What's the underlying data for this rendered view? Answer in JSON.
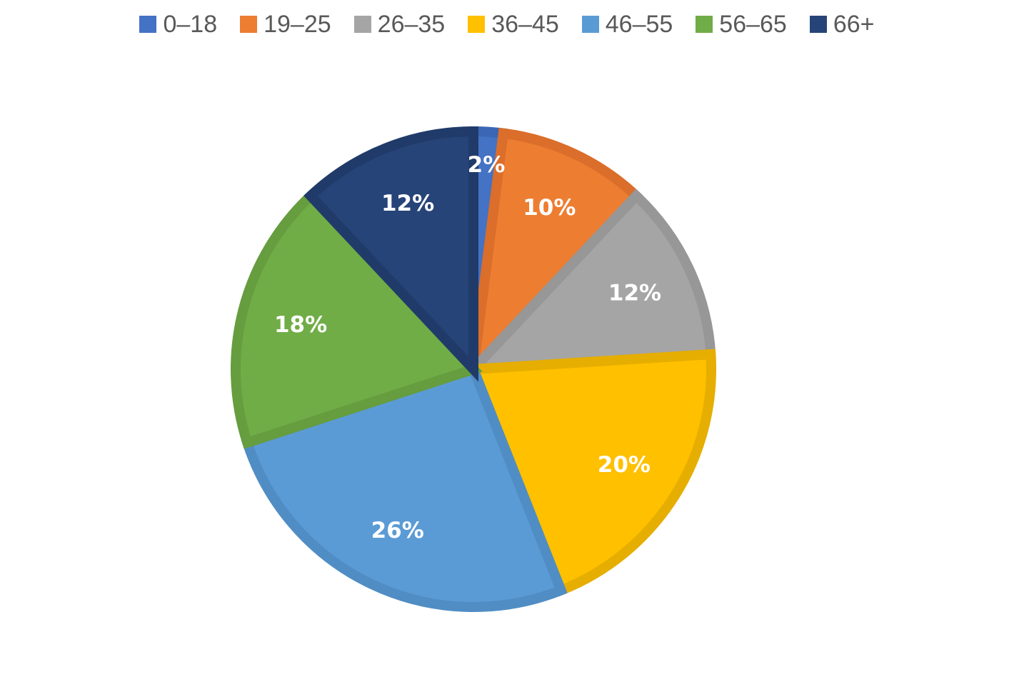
{
  "chart_data": {
    "type": "pie",
    "title": "",
    "legend_position": "top",
    "slices": [
      {
        "label": "0–18",
        "value": 2,
        "display": "2%",
        "color": "#4472C4",
        "edge": "#3A66B4"
      },
      {
        "label": "19–25",
        "value": 10,
        "display": "10%",
        "color": "#ED7D31",
        "edge": "#DA6E2A"
      },
      {
        "label": "26–35",
        "value": 12,
        "display": "12%",
        "color": "#A5A5A5",
        "edge": "#979797"
      },
      {
        "label": "36–45",
        "value": 20,
        "display": "20%",
        "color": "#FFC000",
        "edge": "#E6AE00"
      },
      {
        "label": "46–55",
        "value": 26,
        "display": "26%",
        "color": "#5B9BD5",
        "edge": "#508DC4"
      },
      {
        "label": "56–65",
        "value": 18,
        "display": "18%",
        "color": "#70AD47",
        "edge": "#659D3F"
      },
      {
        "label": "66+",
        "value": 12,
        "display": "12%",
        "color": "#264478",
        "edge": "#203B69"
      }
    ]
  }
}
